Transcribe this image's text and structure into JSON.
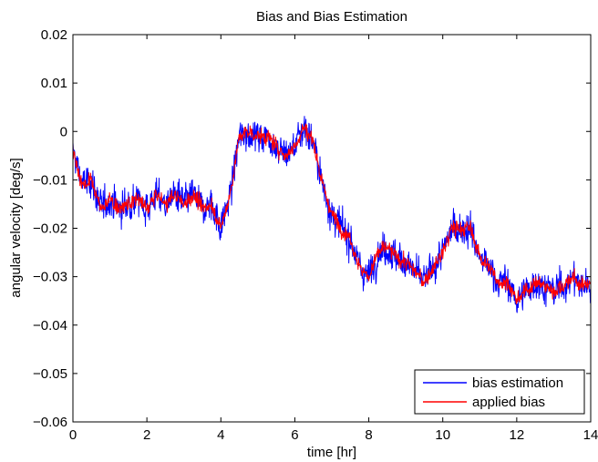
{
  "chart_data": {
    "type": "line",
    "title": "Bias and Bias Estimation",
    "xlabel": "time [hr]",
    "ylabel": "angular velocity [deg/s]",
    "xlim": [
      0,
      14
    ],
    "ylim": [
      -0.06,
      0.02
    ],
    "x_ticks": [
      0,
      2,
      4,
      6,
      8,
      10,
      12,
      14
    ],
    "x_tick_labels": [
      "0",
      "2",
      "4",
      "6",
      "8",
      "10",
      "12",
      "14"
    ],
    "y_ticks": [
      -0.06,
      -0.05,
      -0.04,
      -0.03,
      -0.02,
      -0.01,
      0,
      0.01,
      0.02
    ],
    "y_tick_labels": [
      "−0.06",
      "−0.05",
      "−0.04",
      "−0.03",
      "−0.02",
      "−0.01",
      "0",
      "0.01",
      "0.02"
    ],
    "grid": false,
    "legend_position": "bottom-right",
    "x": [
      0,
      0.25,
      0.5,
      0.75,
      1,
      1.25,
      1.5,
      1.75,
      2,
      2.25,
      2.5,
      2.75,
      3,
      3.25,
      3.5,
      3.75,
      4,
      4.25,
      4.5,
      4.75,
      5,
      5.25,
      5.5,
      5.75,
      6,
      6.25,
      6.5,
      6.75,
      7,
      7.25,
      7.5,
      7.75,
      8,
      8.25,
      8.5,
      8.75,
      9,
      9.25,
      9.5,
      9.75,
      10,
      10.25,
      10.5,
      10.75,
      11,
      11.25,
      11.5,
      11.75,
      12,
      12.25,
      12.5,
      12.75,
      13,
      13.25,
      13.5,
      13.75,
      14
    ],
    "series": [
      {
        "name": "bias estimation",
        "color": "#0000ff",
        "noise": 0.0055,
        "values": [
          -0.004,
          -0.011,
          -0.01,
          -0.016,
          -0.014,
          -0.016,
          -0.015,
          -0.014,
          -0.016,
          -0.013,
          -0.015,
          -0.013,
          -0.015,
          -0.013,
          -0.016,
          -0.015,
          -0.02,
          -0.013,
          -0.001,
          0.0,
          -0.001,
          -0.001,
          -0.003,
          -0.005,
          -0.003,
          0.001,
          -0.002,
          -0.011,
          -0.017,
          -0.02,
          -0.022,
          -0.028,
          -0.03,
          -0.025,
          -0.024,
          -0.026,
          -0.027,
          -0.029,
          -0.031,
          -0.028,
          -0.025,
          -0.02,
          -0.02,
          -0.02,
          -0.026,
          -0.028,
          -0.031,
          -0.031,
          -0.035,
          -0.033,
          -0.031,
          -0.032,
          -0.033,
          -0.032,
          -0.03,
          -0.032,
          -0.031
        ]
      },
      {
        "name": "applied bias",
        "color": "#ff0000",
        "noise": 0.0025,
        "values": [
          -0.004,
          -0.011,
          -0.01,
          -0.016,
          -0.014,
          -0.016,
          -0.015,
          -0.014,
          -0.016,
          -0.013,
          -0.015,
          -0.013,
          -0.015,
          -0.013,
          -0.016,
          -0.015,
          -0.02,
          -0.013,
          -0.001,
          0.0,
          -0.001,
          -0.001,
          -0.003,
          -0.005,
          -0.003,
          0.001,
          -0.002,
          -0.011,
          -0.017,
          -0.02,
          -0.022,
          -0.028,
          -0.03,
          -0.025,
          -0.024,
          -0.026,
          -0.027,
          -0.029,
          -0.031,
          -0.028,
          -0.025,
          -0.02,
          -0.02,
          -0.02,
          -0.026,
          -0.028,
          -0.031,
          -0.031,
          -0.035,
          -0.033,
          -0.031,
          -0.032,
          -0.033,
          -0.032,
          -0.03,
          -0.032,
          -0.031
        ]
      }
    ]
  }
}
